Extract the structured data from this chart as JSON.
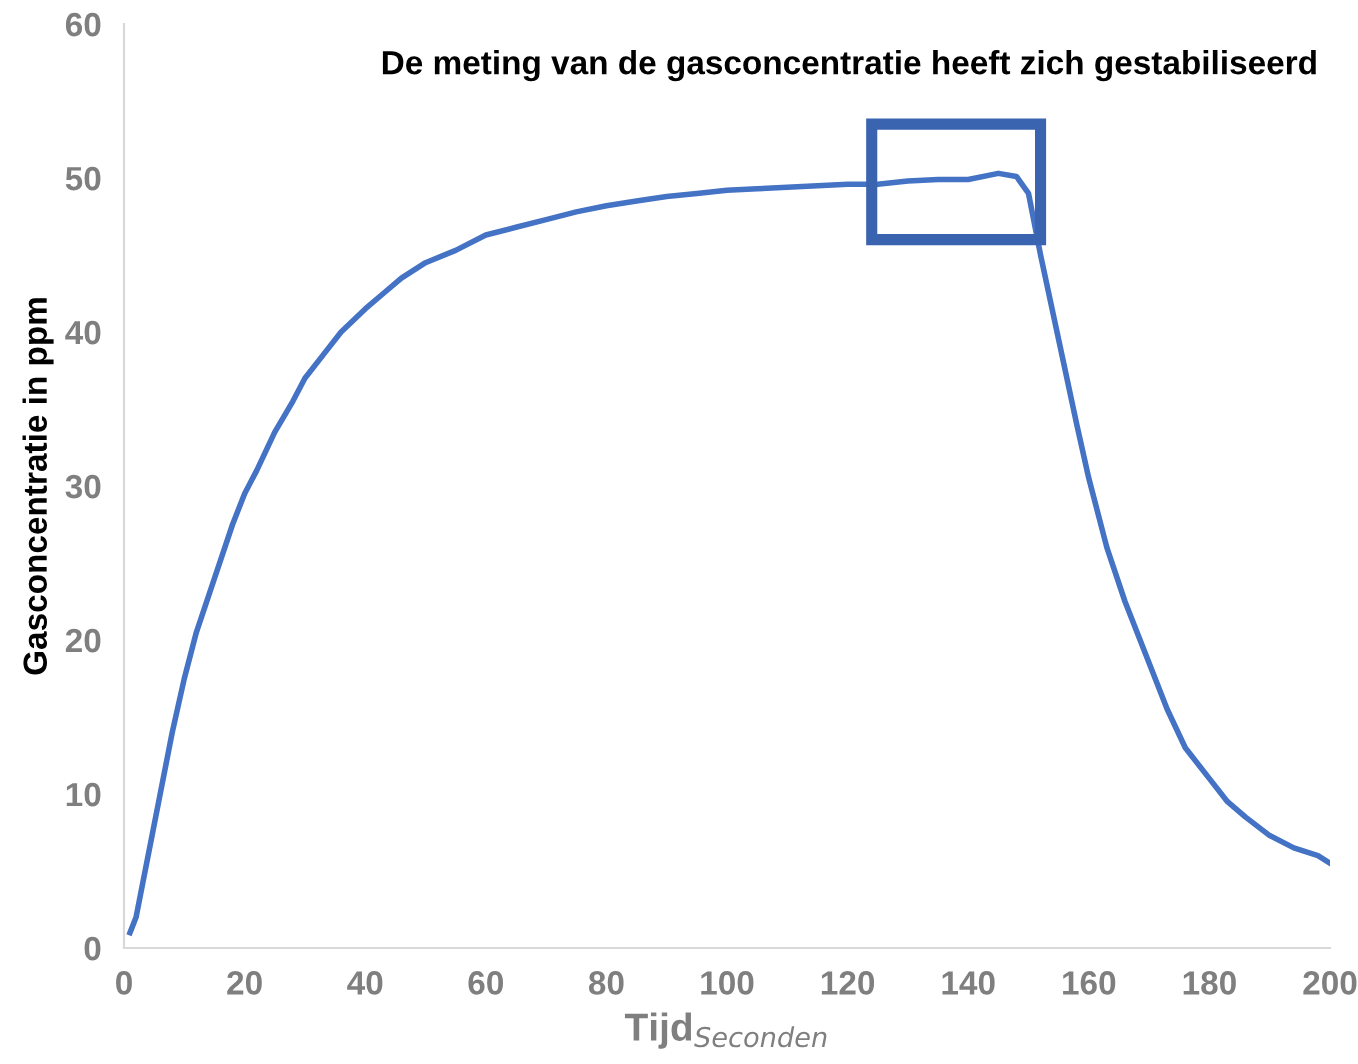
{
  "chart_data": {
    "type": "line",
    "xlabel": "Tijd$_{Seconden}$",
    "ylabel": "Gasconcentratie in ppm",
    "annotations": [
      {
        "text": "De meting van de gasconcentratie heeft zich gestabiliseerd",
        "x": 138,
        "y": 50
      }
    ],
    "series": [
      {
        "color": "#4472c4",
        "x": [
          1,
          2,
          4,
          6,
          8,
          10,
          12,
          15,
          18,
          20,
          22,
          25,
          28,
          30,
          33,
          36,
          40,
          43,
          46,
          50,
          55,
          60,
          65,
          70,
          75,
          80,
          85,
          90,
          95,
          100,
          105,
          110,
          115,
          120,
          125,
          130,
          135,
          140,
          145,
          148,
          150,
          152,
          155,
          158,
          160,
          163,
          166,
          170,
          173,
          176,
          180,
          183,
          186,
          190,
          194,
          198,
          200
        ],
        "values": [
          1,
          2,
          6,
          10,
          14,
          17.5,
          20.5,
          24,
          27.5,
          29.5,
          31,
          33.5,
          35.5,
          37,
          38.5,
          40,
          41.5,
          42.5,
          43.5,
          44.5,
          45.3,
          46.3,
          46.8,
          47.3,
          47.8,
          48.2,
          48.5,
          48.8,
          49,
          49.2,
          49.3,
          49.4,
          49.5,
          49.6,
          49.6,
          49.8,
          49.9,
          49.9,
          50.3,
          50.1,
          49,
          45,
          39.5,
          34,
          30.5,
          26,
          22.5,
          18.5,
          15.5,
          13,
          11,
          9.5,
          8.5,
          7.3,
          6.5,
          6,
          5.5
        ]
      }
    ],
    "xlim": [
      0,
      200
    ],
    "xticks": [
      0,
      20,
      40,
      60,
      80,
      100,
      120,
      140,
      160,
      180,
      200
    ],
    "ylim": [
      0,
      60
    ],
    "yticks": [
      0,
      10,
      20,
      30,
      40,
      50,
      60
    ],
    "grid": false,
    "legend": false,
    "marker": "none",
    "line_style": "solid"
  }
}
